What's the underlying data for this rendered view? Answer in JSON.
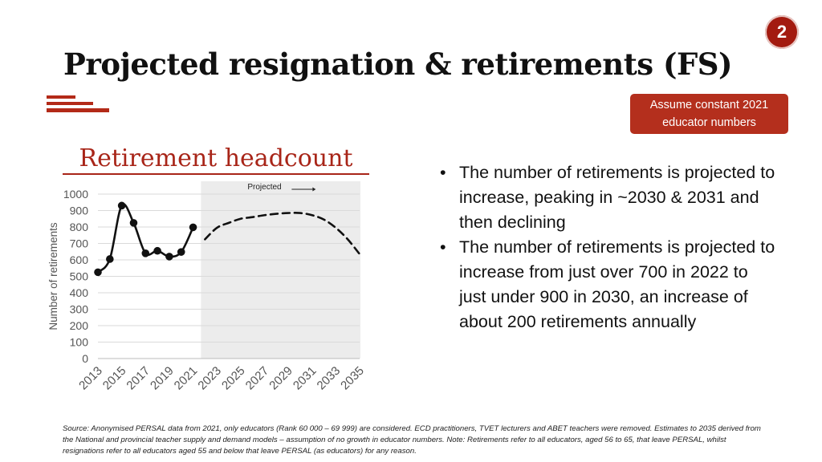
{
  "page_number": "2",
  "title": "Projected resignation & retirements (FS)",
  "note": {
    "line1": "Assume constant 2021",
    "line2": "educator numbers"
  },
  "chart_title": "Retirement headcount",
  "bullets": [
    "The number of retirements is projected to increase, peaking in ~2030 & 2031 and then declining",
    "The number of retirements is projected to increase from just over 700 in 2022 to just under 900 in 2030, an increase of about 200 retirements annually"
  ],
  "source": "Source: Anonymised PERSAL data from 2021, only educators (Rank 60 000 – 69 999) are considered. ECD practitioners, TVET lecturers and ABET teachers were removed. Estimates to 2035 derived from the National and provincial teacher supply and demand models – assumption of no growth in educator numbers. Note: Retirements refer to all educators, aged 56 to 65, that leave PERSAL, whilst resignations refer to all educators aged 55 and below that leave PERSAL (as educators) for any reason.",
  "colors": {
    "accent": "#a82518",
    "note_box": "#b42f1d",
    "projection_shade": "#ececec",
    "line": "#111111"
  },
  "chart_data": {
    "type": "line",
    "ylabel": "Number of retirements",
    "xlabel": "",
    "ylim": [
      0,
      1000
    ],
    "yticks": [
      0,
      100,
      200,
      300,
      400,
      500,
      600,
      700,
      800,
      900,
      1000
    ],
    "xlim": [
      2013,
      2035
    ],
    "xticks": [
      "2013",
      "2015",
      "2017",
      "2019",
      "2021",
      "2023",
      "2025",
      "2027",
      "2029",
      "2031",
      "2033",
      "2035"
    ],
    "grid": true,
    "projection_label": "Projected",
    "projection_start": 2022,
    "series": [
      {
        "style": "solid-markers",
        "x": [
          2013,
          2014,
          2015,
          2016,
          2017,
          2018,
          2019,
          2020,
          2021
        ],
        "y": [
          525,
          605,
          930,
          825,
          640,
          655,
          620,
          648,
          798
        ]
      },
      {
        "style": "dashed",
        "x": [
          2022,
          2023,
          2024,
          2025,
          2026,
          2027,
          2028,
          2029,
          2030,
          2031,
          2032,
          2033,
          2034,
          2035
        ],
        "y": [
          725,
          795,
          825,
          850,
          860,
          872,
          880,
          885,
          885,
          872,
          845,
          795,
          725,
          635
        ]
      }
    ]
  }
}
